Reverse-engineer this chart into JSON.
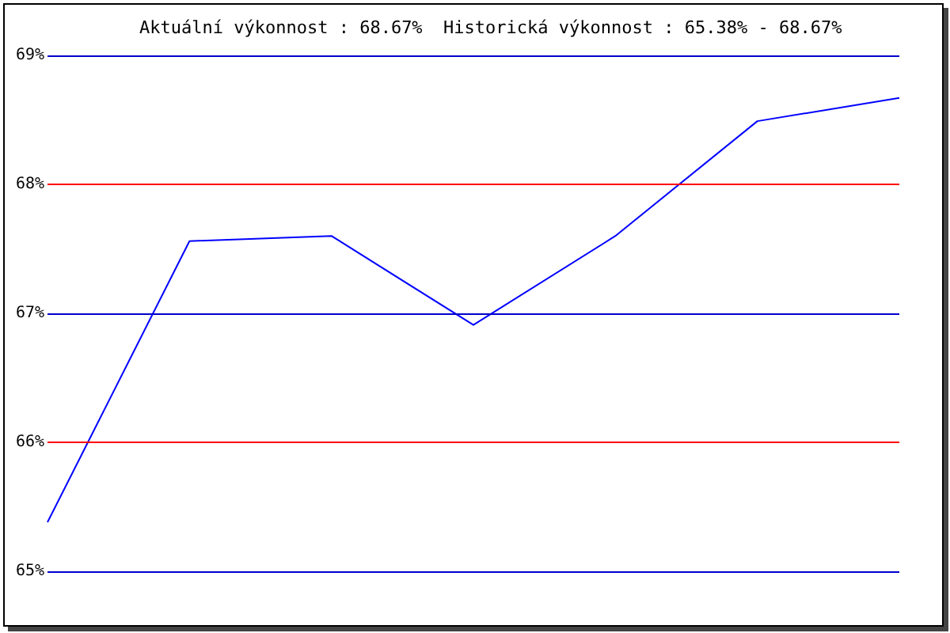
{
  "chart_data": {
    "type": "line",
    "title": "Aktuální výkonnost : 68.67%  Historická výkonnost : 65.38% - 68.67%",
    "categories": [
      null,
      null,
      null,
      null,
      null,
      null,
      null
    ],
    "series": [
      {
        "color": "#0000ff",
        "values": [
          65.38,
          67.56,
          67.6,
          66.91,
          67.6,
          68.49,
          68.67
        ]
      }
    ],
    "ylim": [
      65,
      69
    ],
    "yticks": [
      {
        "value": 65,
        "label": "65%"
      },
      {
        "value": 66,
        "label": "66%"
      },
      {
        "value": 67,
        "label": "67%"
      },
      {
        "value": 68,
        "label": "68%"
      },
      {
        "value": 69,
        "label": "69%"
      }
    ],
    "grid": false,
    "marker": "none",
    "line_style": "solid",
    "ref_lines": [
      {
        "axis": "y",
        "value": 65,
        "label": null,
        "color": "#0000cc"
      },
      {
        "axis": "y",
        "value": 66,
        "label": null,
        "color": "#ff0000"
      },
      {
        "axis": "y",
        "value": 67,
        "label": null,
        "color": "#0000cc"
      },
      {
        "axis": "y",
        "value": 68,
        "label": null,
        "color": "#ff0000"
      },
      {
        "axis": "y",
        "value": 69,
        "label": null,
        "color": "#0000cc"
      }
    ]
  }
}
